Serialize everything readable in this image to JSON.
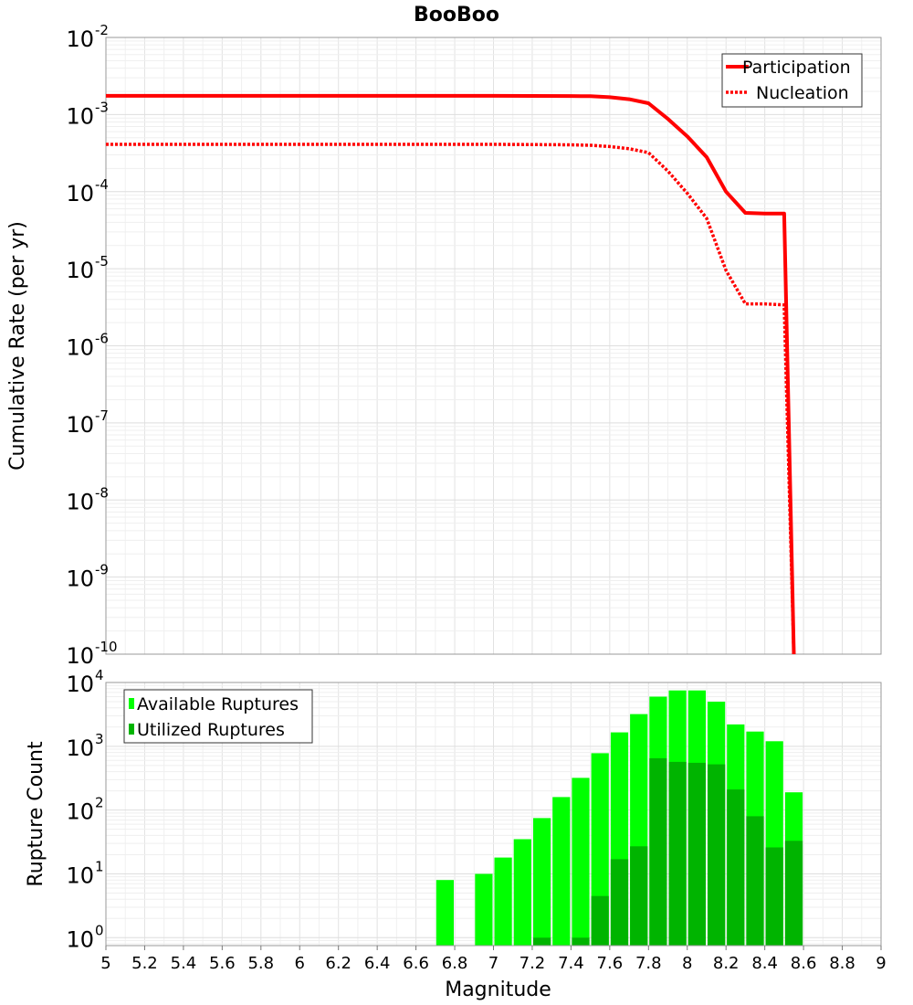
{
  "chart_data": [
    {
      "type": "line",
      "title": "BooBoo",
      "xlabel": "",
      "ylabel": "Cumulative Rate (per yr)",
      "xlim": [
        5,
        9
      ],
      "ylim_exponent": [
        -10,
        -2
      ],
      "yscale": "log",
      "ytick_exponents": [
        -10,
        -9,
        -8,
        -7,
        -6,
        -5,
        -4,
        -3,
        -2
      ],
      "ytick_labels": [
        "10",
        "10",
        "10",
        "10",
        "10",
        "10",
        "10",
        "10",
        "10"
      ],
      "ytick_sup_labels": [
        "-10",
        "-9",
        "-8",
        "-7",
        "-6",
        "-5",
        "-4",
        "-3",
        "-2"
      ],
      "legend_position": "top-right",
      "series": [
        {
          "name": "Participation",
          "color": "#ff0000",
          "style": "solid",
          "x": [
            5.0,
            5.5,
            6.0,
            6.5,
            7.0,
            7.4,
            7.5,
            7.6,
            7.7,
            7.8,
            7.9,
            8.0,
            8.1,
            8.2,
            8.3,
            8.4,
            8.5,
            8.55
          ],
          "y": [
            0.00175,
            0.00175,
            0.00175,
            0.00175,
            0.00175,
            0.00174,
            0.00173,
            0.00168,
            0.00158,
            0.0014,
            0.00088,
            0.00052,
            0.00028,
            0.0001,
            5.3e-05,
            5.2e-05,
            5.2e-05,
            1e-10
          ]
        },
        {
          "name": "Nucleation",
          "color": "#ff0000",
          "style": "dotted",
          "x": [
            5.0,
            5.5,
            6.0,
            6.5,
            7.0,
            7.4,
            7.5,
            7.6,
            7.7,
            7.8,
            7.9,
            8.0,
            8.1,
            8.2,
            8.3,
            8.4,
            8.5,
            8.55
          ],
          "y": [
            0.00041,
            0.00041,
            0.00041,
            0.00041,
            0.00041,
            0.000405,
            0.0004,
            0.000385,
            0.00036,
            0.00032,
            0.000185,
            9.5e-05,
            4.5e-05,
            9.5e-06,
            3.5e-06,
            3.5e-06,
            3.4e-06,
            1e-10
          ]
        }
      ]
    },
    {
      "type": "bar",
      "title": "",
      "xlabel": "Magnitude",
      "ylabel": "Rupture Count",
      "xlim": [
        5,
        9
      ],
      "ylim": [
        0.75,
        10000
      ],
      "yscale": "log",
      "ytick_exponents": [
        0,
        1,
        2,
        3,
        4
      ],
      "ytick_labels": [
        "10",
        "10",
        "10",
        "10",
        "10"
      ],
      "ytick_sup_labels": [
        "0",
        "1",
        "2",
        "3",
        "4"
      ],
      "xtick_values": [
        5,
        5.2,
        5.4,
        5.6,
        5.8,
        6,
        6.2,
        6.4,
        6.6,
        6.8,
        7,
        7.2,
        7.4,
        7.6,
        7.8,
        8,
        8.2,
        8.4,
        8.6,
        8.8,
        9
      ],
      "xtick_labels": [
        "5",
        "5.2",
        "5.4",
        "5.6",
        "5.8",
        "6",
        "6.2",
        "6.4",
        "6.6",
        "6.8",
        "7",
        "7.2",
        "7.4",
        "7.6",
        "7.8",
        "8",
        "8.2",
        "8.4",
        "8.6",
        "8.8",
        "9"
      ],
      "bar_width": 0.1,
      "legend_position": "top-left",
      "series": [
        {
          "name": "Available Ruptures",
          "color": "#00ff00",
          "x": [
            6.75,
            6.95,
            7.05,
            7.15,
            7.25,
            7.35,
            7.45,
            7.55,
            7.65,
            7.75,
            7.85,
            7.95,
            8.05,
            8.15,
            8.25,
            8.35,
            8.45,
            8.55
          ],
          "values": [
            8,
            10,
            18,
            35,
            75,
            160,
            320,
            780,
            1650,
            3200,
            6000,
            7500,
            7500,
            5000,
            2200,
            1700,
            1200,
            190
          ]
        },
        {
          "name": "Utilized Ruptures",
          "color": "#00b400",
          "x": [
            7.25,
            7.45,
            7.55,
            7.65,
            7.75,
            7.85,
            7.95,
            8.05,
            8.15,
            8.25,
            8.35,
            8.45,
            8.55
          ],
          "values": [
            1,
            1,
            4.5,
            17,
            27,
            650,
            570,
            550,
            520,
            210,
            80,
            26,
            33
          ]
        }
      ]
    }
  ]
}
